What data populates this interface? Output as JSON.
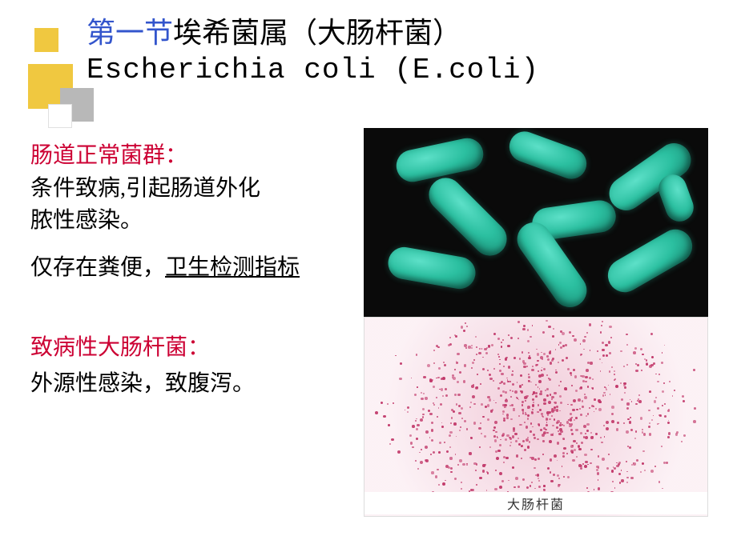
{
  "title": {
    "section_label": "第一节",
    "chinese_name": "埃希菌属（大肠杆菌）",
    "latin_name": "Escherichia coli (E.coli)"
  },
  "body": {
    "group1_label": "肠道正常菌群：",
    "group1_desc_line1": "条件致病,引起肠道外化",
    "group1_desc_line2": "脓性感染。",
    "group1_note_prefix": "仅存在粪便，",
    "group1_note_underlined": "卫生检测指标",
    "group2_label": "致病性大肠杆菌：",
    "group2_desc": "外源性感染，致腹泻。"
  },
  "images": {
    "top_alt": "green-rod-bacteria-sem",
    "bottom_alt": "gram-stain-ecoli",
    "bottom_caption": "大肠杆菌"
  },
  "colors": {
    "section_color": "#3355cc",
    "label_color": "#cc0033",
    "decor_yellow": "#f0c840",
    "decor_gray": "#b8b8b8",
    "bacteria_green": "#2bbfa0",
    "stain_pink": "#c23a6b"
  }
}
